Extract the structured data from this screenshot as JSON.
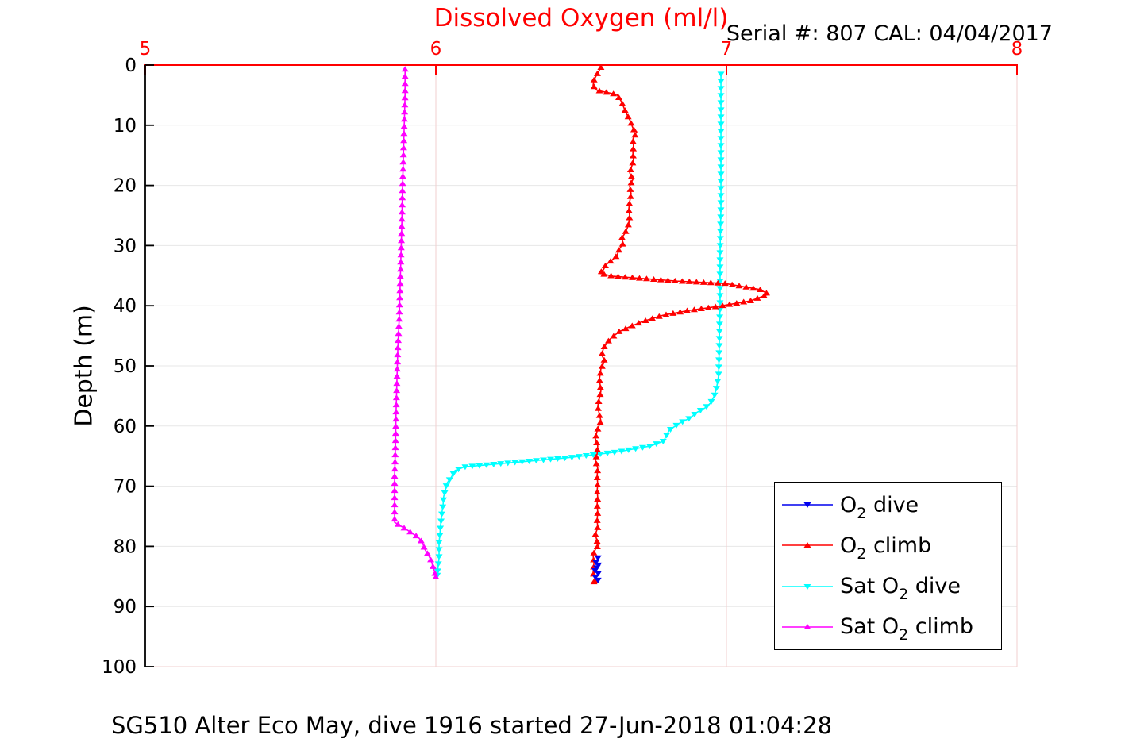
{
  "figure": {
    "title": "Dissolved Oxygen (ml/l)",
    "annotation": "Serial #: 807  CAL: 04/04/2017",
    "caption": "SG510 Alter Eco May, dive 1916 started 27-Jun-2018 01:04:28"
  },
  "colors": {
    "title": "#ff0000",
    "x_axis": "#ff0000",
    "y_axis": "#000000",
    "grid_horizontal": "#e7e7e7",
    "grid_vertical": "#f2cfcf",
    "o2_dive": "#0000ee",
    "o2_climb": "#ff0000",
    "sat_o2_dive": "#00ffff",
    "sat_o2_climb": "#ff00ff"
  },
  "chart_data": {
    "type": "line",
    "title": "Dissolved Oxygen (ml/l)",
    "annotation": "Serial #: 807  CAL: 04/04/2017",
    "caption": "SG510 Alter Eco May, dive 1916 started 27-Jun-2018 01:04:28",
    "x_axis": {
      "position": "top",
      "lim": [
        5,
        8
      ],
      "ticks": [
        "5",
        "6",
        "7",
        "8"
      ],
      "tick_values": [
        5,
        6,
        7,
        8
      ],
      "color": "#ff0000",
      "grid": true
    },
    "y_axis": {
      "label": "Depth (m)",
      "lim": [
        0,
        100
      ],
      "reversed": true,
      "ticks": [
        "0",
        "10",
        "20",
        "30",
        "40",
        "50",
        "60",
        "70",
        "80",
        "90",
        "100"
      ],
      "tick_values": [
        0,
        10,
        20,
        30,
        40,
        50,
        60,
        70,
        80,
        90,
        100
      ],
      "color": "#000000",
      "grid": true
    },
    "legend": {
      "position": "lower right",
      "items": [
        {
          "pre": "O",
          "sub": "2",
          "post": " dive",
          "plain": "O2 dive",
          "color": "#0000ee",
          "marker": "down"
        },
        {
          "pre": "O",
          "sub": "2",
          "post": " climb",
          "plain": "O2 climb",
          "color": "#ff0000",
          "marker": "up"
        },
        {
          "pre": "Sat O",
          "sub": "2",
          "post": " dive",
          "plain": "Sat O2 dive",
          "color": "#00ffff",
          "marker": "down"
        },
        {
          "pre": "Sat O",
          "sub": "2",
          "post": " climb",
          "plain": "Sat O2 climb",
          "color": "#ff00ff",
          "marker": "up"
        }
      ]
    },
    "series": [
      {
        "name": "Sat O2 dive",
        "color": "#00ffff",
        "marker": "down",
        "marker_spacing": 9,
        "points": [
          [
            6.981,
            1.5
          ],
          [
            6.981,
            7.7
          ],
          [
            6.981,
            15.6
          ],
          [
            6.981,
            23.5
          ],
          [
            6.978,
            31.4
          ],
          [
            6.978,
            39.3
          ],
          [
            6.975,
            47.2
          ],
          [
            6.973,
            51.6
          ],
          [
            6.967,
            53.4
          ],
          [
            6.959,
            54.9
          ],
          [
            6.945,
            56.2
          ],
          [
            6.926,
            57.0
          ],
          [
            6.899,
            57.7
          ],
          [
            6.877,
            58.6
          ],
          [
            6.836,
            59.6
          ],
          [
            6.803,
            60.7
          ],
          [
            6.792,
            61.7
          ],
          [
            6.784,
            62.5
          ],
          [
            6.74,
            63.3
          ],
          [
            6.626,
            64.3
          ],
          [
            6.448,
            65.3
          ],
          [
            6.257,
            66.1
          ],
          [
            6.098,
            66.8
          ],
          [
            6.066,
            67.4
          ],
          [
            6.052,
            68.6
          ],
          [
            6.038,
            69.5
          ],
          [
            6.033,
            70.6
          ],
          [
            6.027,
            71.7
          ],
          [
            6.025,
            73.0
          ],
          [
            6.022,
            74.0
          ],
          [
            6.019,
            75.3
          ],
          [
            6.016,
            76.6
          ],
          [
            6.014,
            78.0
          ],
          [
            6.011,
            79.3
          ],
          [
            6.011,
            80.6
          ],
          [
            6.011,
            81.9
          ],
          [
            6.008,
            83.2
          ],
          [
            6.005,
            84.8
          ]
        ]
      },
      {
        "name": "Sat O2 climb",
        "color": "#ff00ff",
        "marker": "up",
        "marker_spacing": 9,
        "points": [
          [
            5.894,
            0.7
          ],
          [
            5.894,
            5.0
          ],
          [
            5.891,
            10.3
          ],
          [
            5.888,
            15.6
          ],
          [
            5.885,
            20.9
          ],
          [
            5.883,
            26.1
          ],
          [
            5.88,
            31.4
          ],
          [
            5.877,
            36.7
          ],
          [
            5.874,
            42.0
          ],
          [
            5.869,
            47.2
          ],
          [
            5.866,
            52.5
          ],
          [
            5.863,
            57.8
          ],
          [
            5.861,
            63.1
          ],
          [
            5.858,
            68.4
          ],
          [
            5.858,
            72.3
          ],
          [
            5.858,
            75.0
          ],
          [
            5.858,
            76.0
          ],
          [
            5.899,
            77.2
          ],
          [
            5.94,
            78.5
          ],
          [
            5.954,
            79.4
          ],
          [
            5.962,
            80.5
          ],
          [
            5.975,
            81.5
          ],
          [
            5.984,
            82.4
          ],
          [
            5.989,
            83.2
          ],
          [
            5.995,
            84.1
          ],
          [
            6.0,
            85.1
          ]
        ]
      },
      {
        "name": "O2 climb",
        "color": "#ff0000",
        "marker": "up",
        "marker_spacing": 9,
        "points": [
          [
            6.568,
            0.4
          ],
          [
            6.555,
            1.5
          ],
          [
            6.544,
            2.5
          ],
          [
            6.541,
            3.4
          ],
          [
            6.555,
            4.2
          ],
          [
            6.623,
            4.9
          ],
          [
            6.639,
            6.1
          ],
          [
            6.653,
            7.8
          ],
          [
            6.667,
            9.1
          ],
          [
            6.68,
            10.7
          ],
          [
            6.691,
            11.1
          ],
          [
            6.678,
            12.3
          ],
          [
            6.68,
            13.5
          ],
          [
            6.678,
            14.6
          ],
          [
            6.68,
            15.8
          ],
          [
            6.672,
            17.2
          ],
          [
            6.667,
            17.9
          ],
          [
            6.678,
            19.0
          ],
          [
            6.667,
            20.1
          ],
          [
            6.672,
            21.4
          ],
          [
            6.667,
            22.7
          ],
          [
            6.664,
            23.9
          ],
          [
            6.667,
            25.1
          ],
          [
            6.664,
            26.3
          ],
          [
            6.658,
            27.2
          ],
          [
            6.65,
            28.0
          ],
          [
            6.639,
            28.8
          ],
          [
            6.645,
            29.6
          ],
          [
            6.631,
            30.6
          ],
          [
            6.623,
            31.7
          ],
          [
            6.604,
            32.5
          ],
          [
            6.585,
            33.2
          ],
          [
            6.577,
            34.0
          ],
          [
            6.563,
            34.6
          ],
          [
            6.609,
            35.1
          ],
          [
            6.828,
            35.9
          ],
          [
            6.995,
            36.3
          ],
          [
            7.115,
            37.3
          ],
          [
            7.145,
            38.1
          ],
          [
            7.082,
            39.2
          ],
          [
            6.973,
            40.1
          ],
          [
            6.869,
            40.8
          ],
          [
            6.781,
            41.6
          ],
          [
            6.713,
            42.6
          ],
          [
            6.667,
            43.5
          ],
          [
            6.631,
            44.3
          ],
          [
            6.598,
            45.6
          ],
          [
            6.577,
            47.0
          ],
          [
            6.571,
            48.2
          ],
          [
            6.581,
            49.2
          ],
          [
            6.568,
            50.5
          ],
          [
            6.563,
            52.2
          ],
          [
            6.568,
            54.2
          ],
          [
            6.557,
            56.7
          ],
          [
            6.563,
            58.2
          ],
          [
            6.568,
            59.1
          ],
          [
            6.555,
            60.8
          ],
          [
            6.549,
            62.1
          ],
          [
            6.557,
            63.3
          ],
          [
            6.555,
            64.6
          ],
          [
            6.549,
            65.7
          ],
          [
            6.557,
            67.0
          ],
          [
            6.555,
            68.3
          ],
          [
            6.557,
            69.7
          ],
          [
            6.555,
            70.7
          ],
          [
            6.557,
            71.9
          ],
          [
            6.555,
            73.0
          ],
          [
            6.557,
            74.3
          ],
          [
            6.555,
            75.6
          ],
          [
            6.557,
            76.9
          ],
          [
            6.549,
            78.0
          ],
          [
            6.555,
            79.2
          ],
          [
            6.563,
            79.6
          ],
          [
            6.549,
            80.5
          ],
          [
            6.541,
            81.4
          ],
          [
            6.544,
            82.8
          ],
          [
            6.541,
            84.4
          ],
          [
            6.549,
            85.5
          ],
          [
            6.544,
            85.9
          ]
        ]
      },
      {
        "name": "O2 dive",
        "color": "#0000ee",
        "marker": "down",
        "marker_spacing": 6,
        "points": [
          [
            6.558,
            81.9
          ],
          [
            6.549,
            82.8
          ],
          [
            6.563,
            83.2
          ],
          [
            6.544,
            83.9
          ],
          [
            6.56,
            84.4
          ],
          [
            6.549,
            85.1
          ],
          [
            6.558,
            85.6
          ]
        ]
      }
    ]
  }
}
